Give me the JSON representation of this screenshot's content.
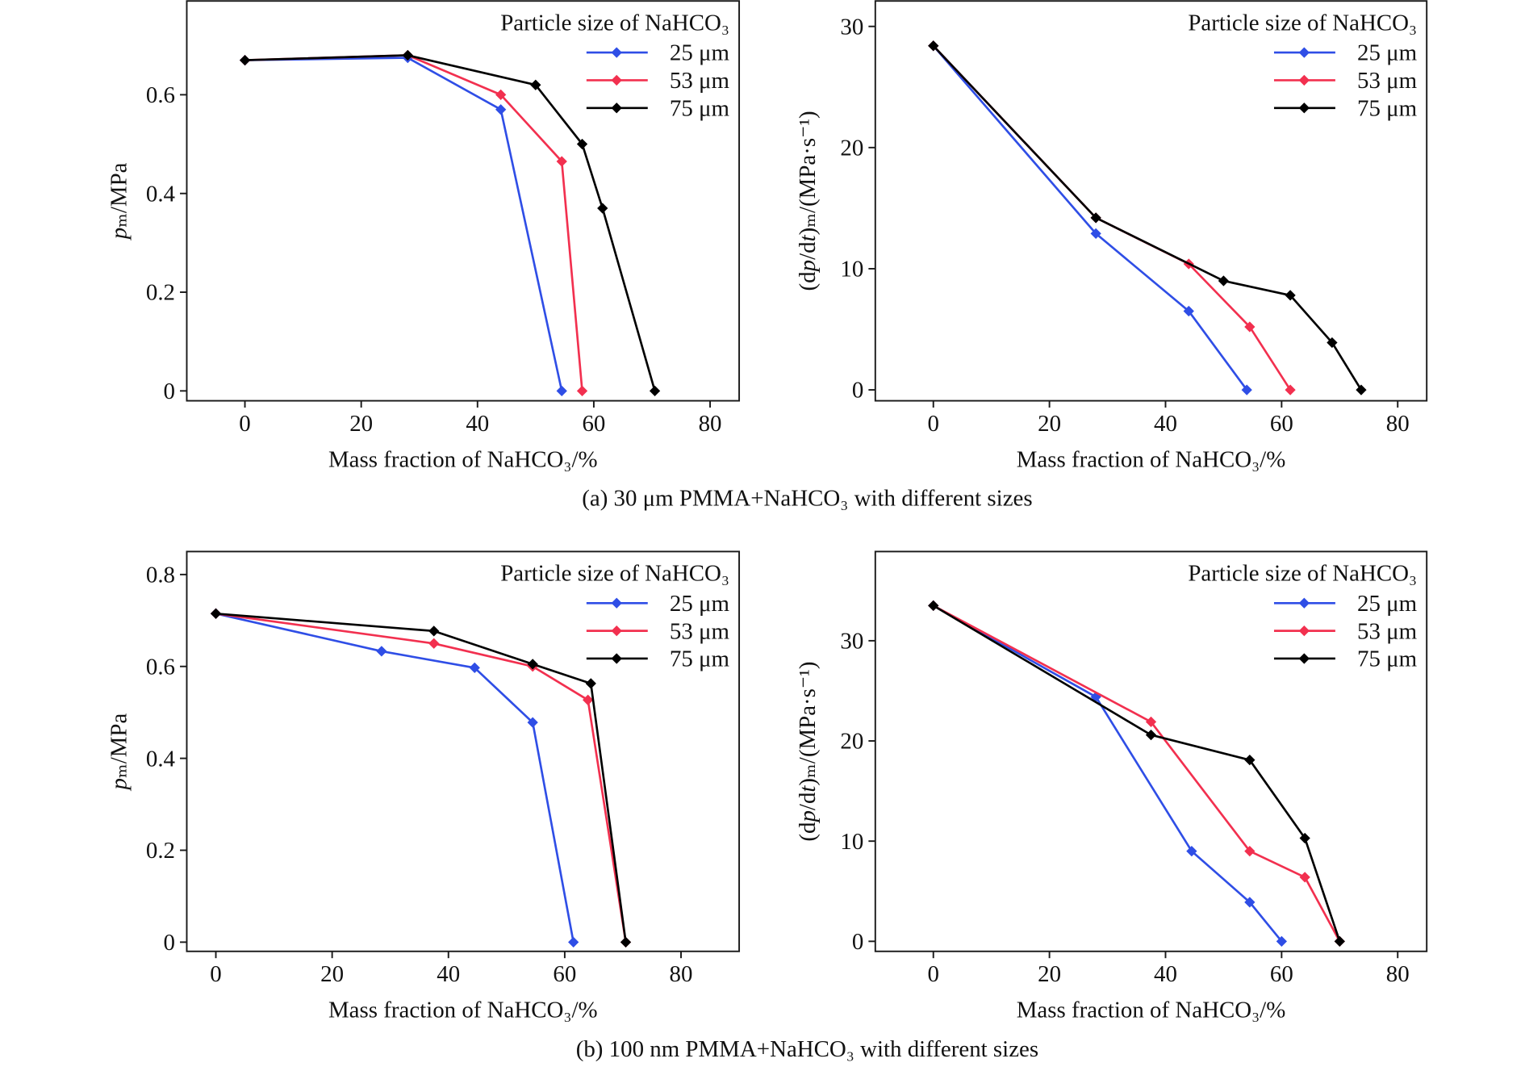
{
  "captions": {
    "a": "(a) 30 μm PMMA+NaHCO₃ with different sizes",
    "b": "(b) 100 nm PMMA+NaHCO₃ with different sizes"
  },
  "chart_data": [
    {
      "type": "line",
      "xlabel": "Mass fraction of NaHCO₃/%",
      "ylabel": "pₘ/MPa",
      "xlim": [
        -10,
        85
      ],
      "ylim": [
        -0.02,
        0.79
      ],
      "xticks": [
        0,
        20,
        40,
        60,
        80
      ],
      "yticks": [
        0,
        0.2,
        0.4,
        0.6
      ],
      "grid": false,
      "legend_title": "Particle size of NaHCO₃",
      "legend_position": "top-right",
      "series": [
        {
          "name": "25 μm",
          "color": "#2f4ee6",
          "marker": "diamond",
          "x": [
            0,
            28,
            44,
            54.5
          ],
          "y": [
            0.67,
            0.675,
            0.57,
            0
          ]
        },
        {
          "name": "53 μm",
          "color": "#f2304f",
          "marker": "diamond",
          "x": [
            0,
            28,
            44,
            54.5,
            58
          ],
          "y": [
            0.67,
            0.68,
            0.6,
            0.465,
            0
          ]
        },
        {
          "name": "75 μm",
          "color": "#000000",
          "marker": "diamond",
          "x": [
            0,
            28,
            50,
            58,
            61.5,
            70.5
          ],
          "y": [
            0.67,
            0.68,
            0.62,
            0.5,
            0.37,
            0
          ]
        }
      ]
    },
    {
      "type": "line",
      "xlabel": "Mass fraction of NaHCO₃/%",
      "ylabel": "(dp/dt)ₘ/(MPa·s⁻¹)",
      "xlim": [
        -10,
        85
      ],
      "ylim": [
        -0.9,
        32.1
      ],
      "xticks": [
        0,
        20,
        40,
        60,
        80
      ],
      "yticks": [
        0,
        10,
        20,
        30
      ],
      "grid": false,
      "legend_title": "Particle size of NaHCO₃",
      "legend_position": "top-right",
      "series": [
        {
          "name": "25 μm",
          "color": "#2f4ee6",
          "marker": "diamond",
          "x": [
            0,
            28,
            44,
            54
          ],
          "y": [
            28.4,
            12.9,
            6.5,
            0
          ]
        },
        {
          "name": "53 μm",
          "color": "#f2304f",
          "marker": "diamond",
          "x": [
            0,
            28,
            44,
            54.5,
            61.5
          ],
          "y": [
            28.4,
            14.2,
            10.4,
            5.2,
            0
          ]
        },
        {
          "name": "75 μm",
          "color": "#000000",
          "marker": "diamond",
          "x": [
            0,
            28,
            50,
            61.5,
            68.7,
            73.7
          ],
          "y": [
            28.4,
            14.2,
            9.0,
            7.8,
            3.9,
            0
          ]
        }
      ]
    },
    {
      "type": "line",
      "xlabel": "Mass fraction of NaHCO₃/%",
      "ylabel": "pₘ/MPa",
      "xlim": [
        -5,
        90
      ],
      "ylim": [
        -0.02,
        0.85
      ],
      "xticks": [
        0,
        20,
        40,
        60,
        80
      ],
      "yticks": [
        0,
        0.2,
        0.4,
        0.6,
        0.8
      ],
      "grid": false,
      "legend_title": "Particle size of NaHCO₃",
      "legend_position": "top-right",
      "series": [
        {
          "name": "25 μm",
          "color": "#2f4ee6",
          "marker": "diamond",
          "x": [
            0,
            28.5,
            44.5,
            54.5,
            61.5
          ],
          "y": [
            0.715,
            0.633,
            0.597,
            0.478,
            0
          ]
        },
        {
          "name": "53 μm",
          "color": "#f2304f",
          "marker": "diamond",
          "x": [
            0,
            37.5,
            54.5,
            64,
            70.5
          ],
          "y": [
            0.715,
            0.65,
            0.6,
            0.527,
            0
          ]
        },
        {
          "name": "75 μm",
          "color": "#000000",
          "marker": "diamond",
          "x": [
            0,
            37.5,
            54.5,
            64.5,
            70.5
          ],
          "y": [
            0.715,
            0.677,
            0.605,
            0.563,
            0
          ]
        }
      ]
    },
    {
      "type": "line",
      "xlabel": "Mass fraction of NaHCO₃/%",
      "ylabel": "(dp/dt)ₘ/(MPa·s⁻¹)",
      "xlim": [
        -10,
        85
      ],
      "ylim": [
        -1,
        38.9
      ],
      "xticks": [
        0,
        20,
        40,
        60,
        80
      ],
      "yticks": [
        0,
        10,
        20,
        30
      ],
      "grid": false,
      "legend_title": "Particle size of NaHCO₃",
      "legend_position": "top-right",
      "series": [
        {
          "name": "25 μm",
          "color": "#2f4ee6",
          "marker": "diamond",
          "x": [
            0,
            28,
            44.5,
            54.5,
            60
          ],
          "y": [
            33.5,
            24.4,
            9.0,
            3.9,
            0
          ]
        },
        {
          "name": "53 μm",
          "color": "#f2304f",
          "marker": "diamond",
          "x": [
            0,
            37.5,
            54.5,
            64,
            70
          ],
          "y": [
            33.5,
            21.9,
            9.0,
            6.4,
            0
          ]
        },
        {
          "name": "75 μm",
          "color": "#000000",
          "marker": "diamond",
          "x": [
            0,
            37.5,
            54.5,
            64,
            70
          ],
          "y": [
            33.5,
            20.6,
            18.1,
            10.3,
            0
          ]
        }
      ]
    }
  ]
}
